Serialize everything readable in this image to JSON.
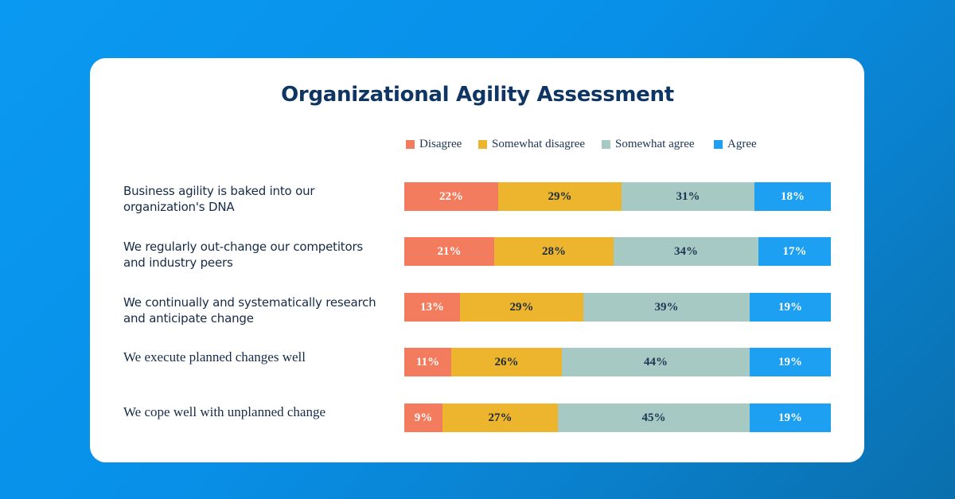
{
  "chart_data": {
    "type": "bar",
    "orientation": "horizontal",
    "stacked": true,
    "title": "Organizational Agility Assessment",
    "xlabel": "",
    "ylabel": "",
    "xlim": [
      0,
      100
    ],
    "categories": [
      "Business agility is baked into our organization's DNA",
      "We regularly out-change our competitors and industry peers",
      "We continually and systematically research and anticipate change",
      "We execute planned changes well",
      "We cope well with unplanned change"
    ],
    "series": [
      {
        "name": "Disagree",
        "color": "#f47c5e",
        "text_color": "#ffffff",
        "values": [
          22,
          21,
          13,
          11,
          9
        ]
      },
      {
        "name": "Somewhat disagree",
        "color": "#ecb52d",
        "text_color": "#1c2a3c",
        "values": [
          29,
          28,
          29,
          26,
          27
        ]
      },
      {
        "name": "Somewhat agree",
        "color": "#a7c9c4",
        "text_color": "#1c3552",
        "values": [
          31,
          34,
          39,
          44,
          45
        ]
      },
      {
        "name": "Agree",
        "color": "#1ea0f2",
        "text_color": "#ffffff",
        "values": [
          18,
          17,
          19,
          19,
          19
        ]
      }
    ],
    "value_suffix": "%",
    "legend_position": "top"
  },
  "colors": {
    "title": "#0e3563",
    "label_text": "#152b47"
  }
}
